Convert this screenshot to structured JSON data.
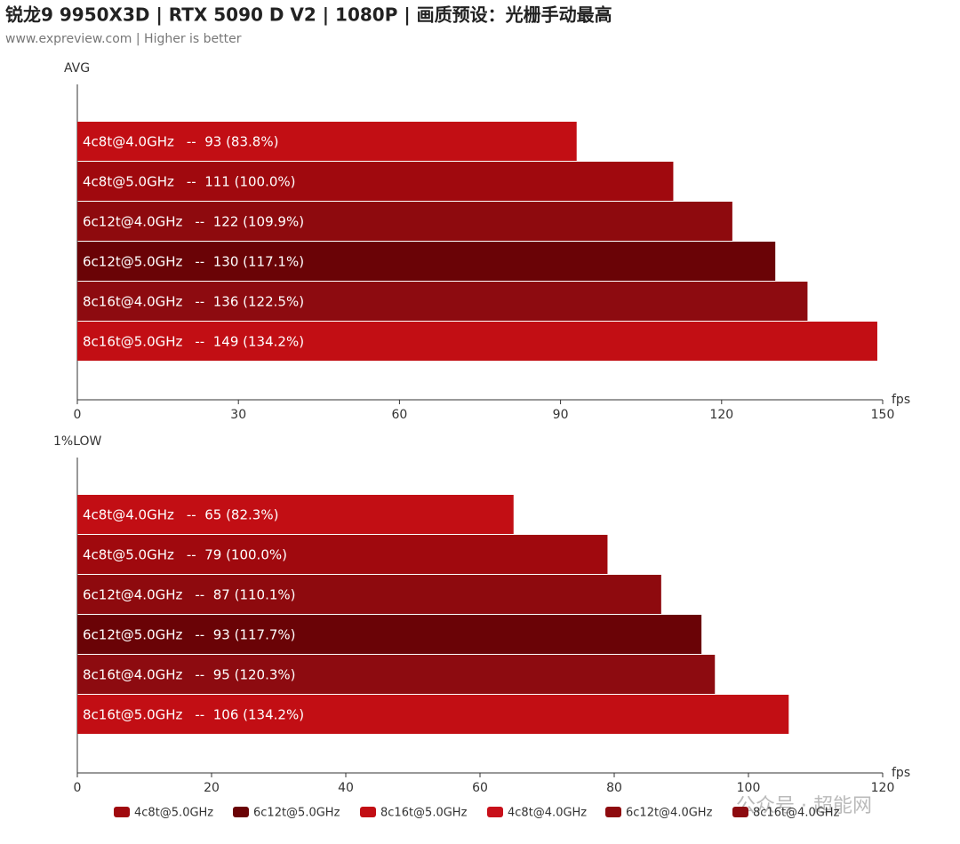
{
  "header": {
    "title": "锐龙9 9950X3D | RTX 5090 D V2 | 1080P | 画质预设：光栅手动最高",
    "subtitle": "www.expreview.com | Higher is better"
  },
  "watermark": "公众号 · 超能网",
  "legend": [
    {
      "name": "4c8t@5.0GHz",
      "color": "#a0090e"
    },
    {
      "name": "6c12t@5.0GHz",
      "color": "#6a0306"
    },
    {
      "name": "8c16t@5.0GHz",
      "color": "#c20e14"
    },
    {
      "name": "4c8t@4.0GHz",
      "color": "#c8101a"
    },
    {
      "name": "6c12t@4.0GHz",
      "color": "#8e0a0e"
    },
    {
      "name": "8c16t@4.0GHz",
      "color": "#8d0b10"
    }
  ],
  "chart_data": [
    {
      "type": "bar",
      "y_label": "AVG",
      "x_label": "fps",
      "categories": [
        "4c8t@4.0GHz",
        "4c8t@5.0GHz",
        "6c12t@4.0GHz",
        "6c12t@5.0GHz",
        "8c16t@4.0GHz",
        "8c16t@5.0GHz"
      ],
      "values": [
        93,
        111,
        122,
        130,
        136,
        149
      ],
      "value_labels": [
        "--  93 (83.8%)",
        "--  111 (100.0%)",
        "--  122 (109.9%)",
        "--  130 (117.1%)",
        "--  136 (122.5%)",
        "--  149 (134.2%)"
      ],
      "colors": [
        "#c20e14",
        "#a0090e",
        "#8e0a0e",
        "#6a0306",
        "#8d0b10",
        "#c20e14"
      ],
      "xlim": [
        0,
        150
      ],
      "xticks": [
        0,
        30,
        60,
        90,
        120,
        150
      ]
    },
    {
      "type": "bar",
      "y_label": "1%LOW",
      "x_label": "fps",
      "categories": [
        "4c8t@4.0GHz",
        "4c8t@5.0GHz",
        "6c12t@4.0GHz",
        "6c12t@5.0GHz",
        "8c16t@4.0GHz",
        "8c16t@5.0GHz"
      ],
      "values": [
        65,
        79,
        87,
        93,
        95,
        106
      ],
      "value_labels": [
        "--  65 (82.3%)",
        "--  79 (100.0%)",
        "--  87 (110.1%)",
        "--  93 (117.7%)",
        "--  95 (120.3%)",
        "--  106 (134.2%)"
      ],
      "colors": [
        "#c20e14",
        "#a0090e",
        "#8e0a0e",
        "#6a0306",
        "#8d0b10",
        "#c20e14"
      ],
      "xlim": [
        0,
        120
      ],
      "xticks": [
        0,
        20,
        40,
        60,
        80,
        100,
        120
      ]
    }
  ]
}
